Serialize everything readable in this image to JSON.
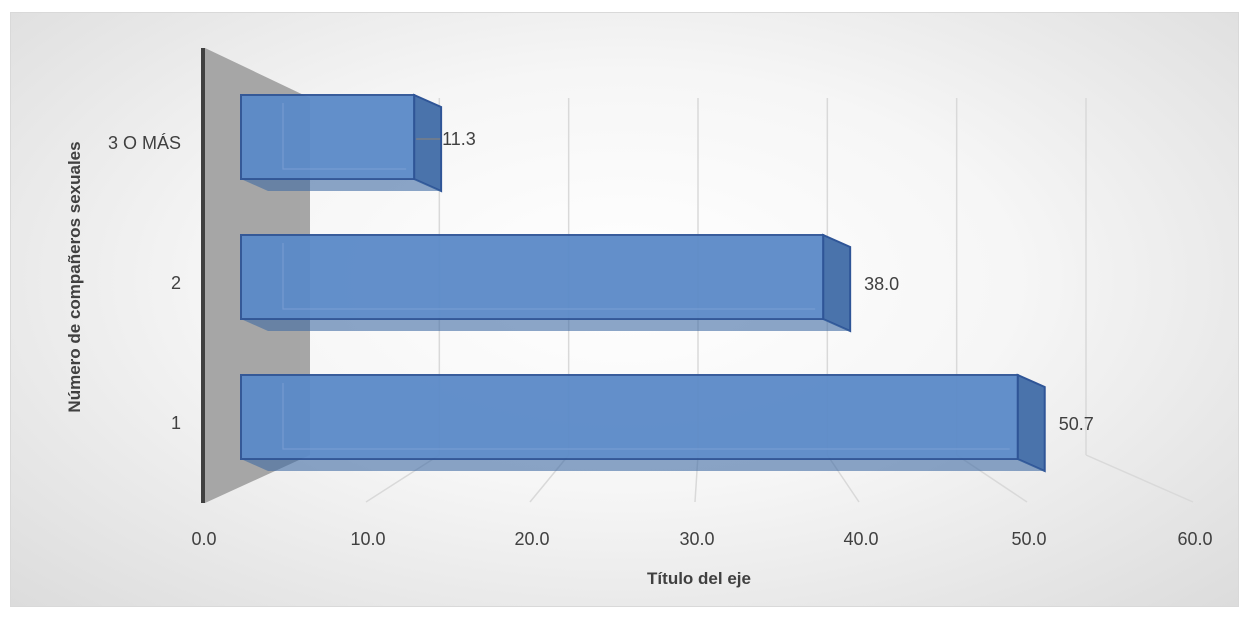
{
  "chart_data": {
    "type": "bar",
    "orientation": "horizontal",
    "three_d": true,
    "categories": [
      "1",
      "2",
      "3 O MÁS"
    ],
    "values": [
      50.7,
      38.0,
      11.3
    ],
    "data_labels": [
      "50.7",
      "38.0",
      "11.3"
    ],
    "xlabel": "Título del eje",
    "ylabel": "Número de compañeros sexuales",
    "xlim": [
      0,
      60
    ],
    "x_ticks": [
      "0.0",
      "10.0",
      "20.0",
      "30.0",
      "40.0",
      "50.0",
      "60.0"
    ],
    "grid": true,
    "legend": "none",
    "colors": {
      "bar_fill": "#5b8ac8",
      "bar_stroke": "#2f5597",
      "gridline": "#d9d9d9",
      "back_wall": "#a6a6a6",
      "axis_line": "#404040"
    }
  }
}
